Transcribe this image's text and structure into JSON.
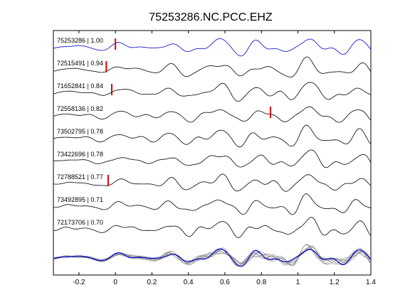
{
  "chart_data": {
    "type": "line",
    "title": "75253286.NC.PCC.EHZ",
    "xlim": [
      -0.34,
      1.4
    ],
    "xticks": [
      -0.2,
      0,
      0.2,
      0.4,
      0.6,
      0.8,
      1,
      1.2,
      1.4
    ],
    "xtick_labels": [
      "-0.2",
      "0",
      "0.2",
      "0.4",
      "0.6",
      "0.8",
      "1",
      "1.2",
      "1.4"
    ],
    "grid": false,
    "traces": [
      {
        "label": "75253286 | 1.00",
        "color": "#0000cc",
        "pick": 0.0,
        "seed": 1
      },
      {
        "label": "72515491 | 0.94",
        "color": "#000000",
        "pick": -0.05,
        "seed": 2
      },
      {
        "label": "71652841 | 0.84",
        "color": "#000000",
        "pick": -0.02,
        "seed": 3
      },
      {
        "label": "72558136 | 0.82",
        "color": "#000000",
        "pick": 0.85,
        "seed": 4
      },
      {
        "label": "73502795 | 0.78",
        "color": "#000000",
        "pick": null,
        "seed": 5
      },
      {
        "label": "73422696 | 0.78",
        "color": "#000000",
        "pick": null,
        "seed": 6
      },
      {
        "label": "72788521 | 0.77",
        "color": "#000000",
        "pick": -0.04,
        "seed": 7
      },
      {
        "label": "73492895 | 0.71",
        "color": "#000000",
        "pick": null,
        "seed": 8
      },
      {
        "label": "72173706 | 0.70",
        "color": "#000000",
        "pick": null,
        "seed": 9
      }
    ],
    "stack": {
      "reference_color": "#0000cc",
      "member_color": "#888888"
    },
    "pick_color": "#dd0000"
  }
}
